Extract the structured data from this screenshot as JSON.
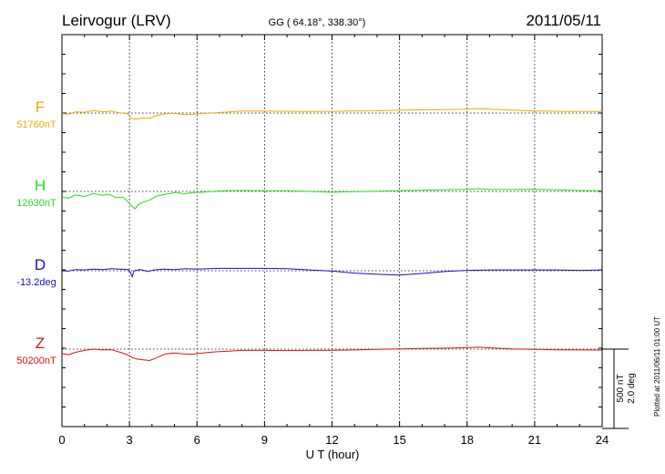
{
  "header": {
    "station": "Leirvogur (LRV)",
    "coords": "GG ( 64.18°, 338.30°)",
    "date": "2011/05/11"
  },
  "footer": {
    "plotted_note": "Plotted at 2011/06/11 01:00 UT",
    "scale_nt": "500 nT",
    "scale_deg": "2.0 deg"
  },
  "chart_data": {
    "type": "line",
    "title": "Leirvogur (LRV)",
    "xlabel": "U T (hour)",
    "xlim": [
      0,
      24
    ],
    "xticks": [
      "0",
      "3",
      "6",
      "9",
      "12",
      "15",
      "18",
      "21",
      "24"
    ],
    "grid": true,
    "scale_bar": {
      "nT": 500,
      "deg": 2.0
    },
    "series": [
      {
        "name": "F",
        "baseline_label": "51760nT",
        "color": "#f0a800",
        "baseline_offset": 0.56,
        "points": [
          [
            0,
            51757
          ],
          [
            0.3,
            51752
          ],
          [
            0.6,
            51767
          ],
          [
            1.0,
            51765
          ],
          [
            1.4,
            51775
          ],
          [
            1.8,
            51768
          ],
          [
            2.2,
            51772
          ],
          [
            2.6,
            51760
          ],
          [
            2.9,
            51757
          ],
          [
            3.1,
            51725
          ],
          [
            3.3,
            51722
          ],
          [
            3.6,
            51729
          ],
          [
            3.9,
            51728
          ],
          [
            4.2,
            51745
          ],
          [
            4.6,
            51755
          ],
          [
            5.0,
            51759
          ],
          [
            5.3,
            51753
          ],
          [
            5.7,
            51750
          ],
          [
            6.2,
            51757
          ],
          [
            6.8,
            51762
          ],
          [
            7.5,
            51768
          ],
          [
            8.0,
            51772
          ],
          [
            9.0,
            51772
          ],
          [
            10.0,
            51771
          ],
          [
            11.0,
            51770
          ],
          [
            12.0,
            51771
          ],
          [
            13.0,
            51773
          ],
          [
            14.0,
            51774
          ],
          [
            15.0,
            51778
          ],
          [
            16.0,
            51780
          ],
          [
            17.0,
            51782
          ],
          [
            18.0,
            51785
          ],
          [
            18.5,
            51788
          ],
          [
            19.0,
            51784
          ],
          [
            20.0,
            51778
          ],
          [
            21.0,
            51773
          ],
          [
            22.0,
            51771
          ],
          [
            23.0,
            51770
          ],
          [
            24.0,
            51769
          ]
        ]
      },
      {
        "name": "H",
        "baseline_label": "12630nT",
        "color": "#22dd22",
        "baseline_offset": 0.56,
        "points": [
          [
            0,
            12593
          ],
          [
            0.3,
            12588
          ],
          [
            0.6,
            12608
          ],
          [
            1.0,
            12598
          ],
          [
            1.4,
            12617
          ],
          [
            1.8,
            12606
          ],
          [
            2.1,
            12612
          ],
          [
            2.4,
            12590
          ],
          [
            2.7,
            12595
          ],
          [
            2.9,
            12570
          ],
          [
            3.1,
            12538
          ],
          [
            3.25,
            12520
          ],
          [
            3.4,
            12548
          ],
          [
            3.6,
            12562
          ],
          [
            3.9,
            12575
          ],
          [
            4.2,
            12600
          ],
          [
            4.5,
            12610
          ],
          [
            4.8,
            12617
          ],
          [
            5.1,
            12625
          ],
          [
            5.4,
            12614
          ],
          [
            5.8,
            12622
          ],
          [
            6.2,
            12625
          ],
          [
            6.8,
            12632
          ],
          [
            7.5,
            12636
          ],
          [
            8.0,
            12636
          ],
          [
            9.0,
            12634
          ],
          [
            10.0,
            12634
          ],
          [
            11.0,
            12630
          ],
          [
            12.0,
            12625
          ],
          [
            13.0,
            12629
          ],
          [
            14.0,
            12631
          ],
          [
            15.0,
            12635
          ],
          [
            16.0,
            12638
          ],
          [
            17.0,
            12640
          ],
          [
            18.0,
            12643
          ],
          [
            18.5,
            12647
          ],
          [
            19.0,
            12642
          ],
          [
            20.0,
            12642
          ],
          [
            21.0,
            12643
          ],
          [
            22.0,
            12640
          ],
          [
            23.0,
            12636
          ],
          [
            24.0,
            12634
          ]
        ]
      },
      {
        "name": "D",
        "baseline_label": "-13.2deg",
        "color": "#1010cc",
        "baseline_offset": 0.56,
        "points": [
          [
            0,
            -13.2
          ],
          [
            0.3,
            -13.21
          ],
          [
            0.6,
            -13.17
          ],
          [
            1.0,
            -13.18
          ],
          [
            1.4,
            -13.16
          ],
          [
            1.8,
            -13.17
          ],
          [
            2.2,
            -13.15
          ],
          [
            2.6,
            -13.16
          ],
          [
            2.95,
            -13.17
          ],
          [
            3.05,
            -13.25
          ],
          [
            3.12,
            -13.35
          ],
          [
            3.2,
            -13.2
          ],
          [
            3.5,
            -13.17
          ],
          [
            3.8,
            -13.22
          ],
          [
            4.1,
            -13.18
          ],
          [
            4.5,
            -13.16
          ],
          [
            5.0,
            -13.17
          ],
          [
            5.5,
            -13.15
          ],
          [
            6.0,
            -13.16
          ],
          [
            7.0,
            -13.14
          ],
          [
            8.0,
            -13.14
          ],
          [
            9.0,
            -13.14
          ],
          [
            10.0,
            -13.15
          ],
          [
            11.0,
            -13.18
          ],
          [
            12.0,
            -13.21
          ],
          [
            13.0,
            -13.26
          ],
          [
            14.0,
            -13.29
          ],
          [
            15.0,
            -13.31
          ],
          [
            16.0,
            -13.27
          ],
          [
            17.0,
            -13.22
          ],
          [
            18.0,
            -13.19
          ],
          [
            19.0,
            -13.18
          ],
          [
            20.0,
            -13.18
          ],
          [
            21.0,
            -13.18
          ],
          [
            22.0,
            -13.18
          ],
          [
            23.0,
            -13.19
          ],
          [
            24.0,
            -13.18
          ]
        ]
      },
      {
        "name": "Z",
        "baseline_label": "50200nT",
        "color": "#dd1111",
        "baseline_offset": 0.56,
        "points": [
          [
            0,
            50172
          ],
          [
            0.3,
            50165
          ],
          [
            0.6,
            50180
          ],
          [
            1.0,
            50192
          ],
          [
            1.4,
            50200
          ],
          [
            1.8,
            50195
          ],
          [
            2.2,
            50196
          ],
          [
            2.6,
            50180
          ],
          [
            2.9,
            50165
          ],
          [
            3.1,
            50148
          ],
          [
            3.3,
            50138
          ],
          [
            3.6,
            50132
          ],
          [
            3.9,
            50128
          ],
          [
            4.2,
            50145
          ],
          [
            4.6,
            50170
          ],
          [
            5.0,
            50176
          ],
          [
            5.4,
            50170
          ],
          [
            5.8,
            50168
          ],
          [
            6.2,
            50175
          ],
          [
            6.8,
            50183
          ],
          [
            7.5,
            50188
          ],
          [
            8.0,
            50192
          ],
          [
            9.0,
            50192
          ],
          [
            10.0,
            50191
          ],
          [
            11.0,
            50192
          ],
          [
            12.0,
            50193
          ],
          [
            13.0,
            50195
          ],
          [
            14.0,
            50198
          ],
          [
            15.0,
            50202
          ],
          [
            16.0,
            50204
          ],
          [
            17.0,
            50206
          ],
          [
            18.0,
            50209
          ],
          [
            18.5,
            50212
          ],
          [
            19.0,
            50208
          ],
          [
            20.0,
            50202
          ],
          [
            21.0,
            50199
          ],
          [
            22.0,
            50196
          ],
          [
            23.0,
            50195
          ],
          [
            24.0,
            50194
          ]
        ]
      }
    ]
  }
}
